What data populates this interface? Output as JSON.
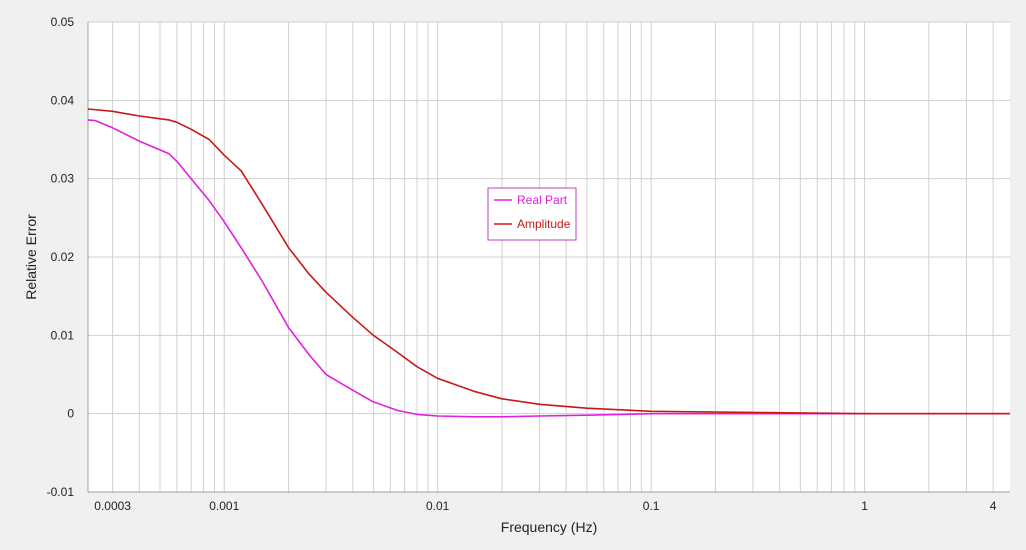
{
  "chart_data": {
    "type": "line",
    "title": "",
    "xlabel": "Frequency (Hz)",
    "ylabel": "Relative Error",
    "x_scale": "log",
    "xlim": [
      0.00023,
      4.8
    ],
    "ylim": [
      -0.01,
      0.05
    ],
    "y_ticks": [
      {
        "value": -0.01,
        "label": "-0.01"
      },
      {
        "value": 0,
        "label": "0"
      },
      {
        "value": 0.01,
        "label": "0.01"
      },
      {
        "value": 0.02,
        "label": "0.02"
      },
      {
        "value": 0.03,
        "label": "0.03"
      },
      {
        "value": 0.04,
        "label": "0.04"
      },
      {
        "value": 0.05,
        "label": "0.05"
      }
    ],
    "x_ticks": [
      {
        "value": 0.0003,
        "label": "0.0003"
      },
      {
        "value": 0.001,
        "label": "0.001"
      },
      {
        "value": 0.01,
        "label": "0.01"
      },
      {
        "value": 0.1,
        "label": "0.1"
      },
      {
        "value": 1,
        "label": "1"
      },
      {
        "value": 4,
        "label": "4"
      }
    ],
    "grid": true,
    "legend_position": "center",
    "colors": {
      "background": "#f0f0f0",
      "plot_background": "#ffffff",
      "grid": "#d0d0d0",
      "axis": "#a0a0a0"
    },
    "series": [
      {
        "name": "Real Part",
        "color": "#e020e0",
        "points": [
          [
            0.00023,
            0.0375
          ],
          [
            0.00025,
            0.0374
          ],
          [
            0.0003,
            0.0365
          ],
          [
            0.0004,
            0.0348
          ],
          [
            0.00055,
            0.0332
          ],
          [
            0.0006,
            0.0322
          ],
          [
            0.0007,
            0.03
          ],
          [
            0.00085,
            0.0272
          ],
          [
            0.001,
            0.0245
          ],
          [
            0.0012,
            0.0212
          ],
          [
            0.0015,
            0.017
          ],
          [
            0.002,
            0.011
          ],
          [
            0.0025,
            0.0075
          ],
          [
            0.003,
            0.005
          ],
          [
            0.004,
            0.003
          ],
          [
            0.005,
            0.0015
          ],
          [
            0.0065,
            0.0004
          ],
          [
            0.008,
            -0.0001
          ],
          [
            0.01,
            -0.0003
          ],
          [
            0.015,
            -0.0004
          ],
          [
            0.02,
            -0.0004
          ],
          [
            0.03,
            -0.0003
          ],
          [
            0.05,
            -0.0002
          ],
          [
            0.1,
            0.0
          ],
          [
            0.2,
            0.0
          ],
          [
            0.5,
            0.0
          ],
          [
            1,
            0.0
          ],
          [
            4.8,
            0.0
          ]
        ]
      },
      {
        "name": "Amplitude",
        "color": "#c81818",
        "points": [
          [
            0.00023,
            0.0389
          ],
          [
            0.0003,
            0.0386
          ],
          [
            0.0004,
            0.038
          ],
          [
            0.00055,
            0.0375
          ],
          [
            0.0006,
            0.0372
          ],
          [
            0.0007,
            0.0363
          ],
          [
            0.00085,
            0.035
          ],
          [
            0.001,
            0.033
          ],
          [
            0.0012,
            0.031
          ],
          [
            0.0015,
            0.0268
          ],
          [
            0.002,
            0.0212
          ],
          [
            0.0025,
            0.0178
          ],
          [
            0.003,
            0.0155
          ],
          [
            0.004,
            0.0123
          ],
          [
            0.005,
            0.01
          ],
          [
            0.0065,
            0.0078
          ],
          [
            0.008,
            0.006
          ],
          [
            0.01,
            0.0045
          ],
          [
            0.015,
            0.0028
          ],
          [
            0.02,
            0.0019
          ],
          [
            0.03,
            0.0012
          ],
          [
            0.05,
            0.0007
          ],
          [
            0.1,
            0.0003
          ],
          [
            0.2,
            0.0002
          ],
          [
            0.5,
            0.0001
          ],
          [
            1,
            0.0
          ],
          [
            4.8,
            0.0
          ]
        ]
      }
    ]
  }
}
